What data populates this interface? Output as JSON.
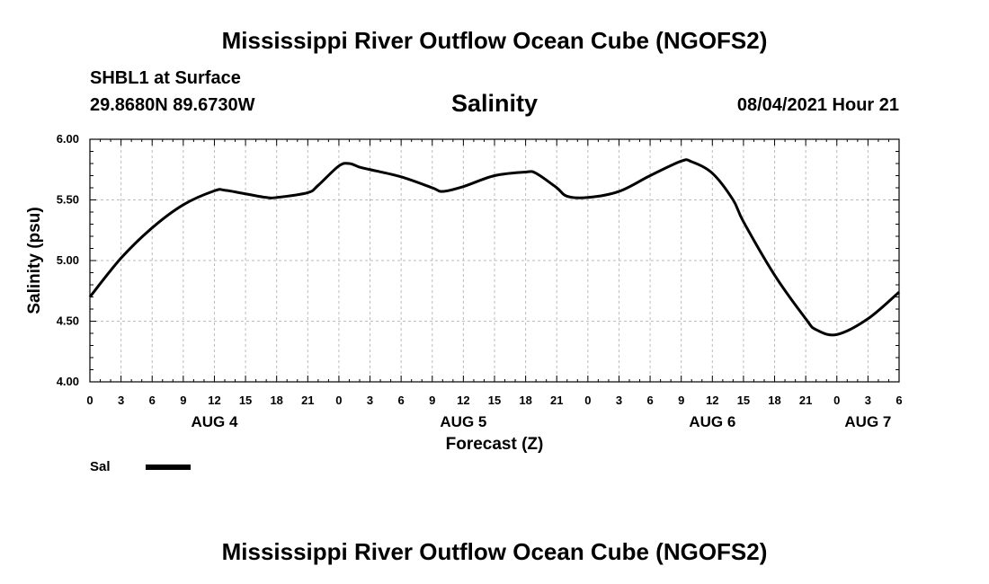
{
  "header": {
    "main_title": "Mississippi River Outflow Ocean Cube (NGOFS2)",
    "station": "SHBL1 at Surface",
    "coords": "29.8680N  89.6730W",
    "chart_title": "Salinity",
    "timestamp": "08/04/2021 Hour 21"
  },
  "footer": {
    "title": "Mississippi River Outflow Ocean Cube (NGOFS2)"
  },
  "chart_data": {
    "type": "line",
    "title": "Salinity",
    "xlabel": "Forecast (Z)",
    "ylabel": "Salinity (psu)",
    "xlim": [
      0,
      78
    ],
    "ylim": [
      4.0,
      6.0
    ],
    "grid": true,
    "y_ticks": [
      4.0,
      4.5,
      5.0,
      5.5,
      6.0
    ],
    "y_tick_labels": [
      "4.00",
      "4.50",
      "5.00",
      "5.50",
      "6.00"
    ],
    "x_ticks": [
      0,
      3,
      6,
      9,
      12,
      15,
      18,
      21,
      24,
      27,
      30,
      33,
      36,
      39,
      42,
      45,
      48,
      51,
      54,
      57,
      60,
      63,
      66,
      69,
      72,
      75,
      78
    ],
    "x_tick_labels": [
      "0",
      "3",
      "6",
      "9",
      "12",
      "15",
      "18",
      "21",
      "0",
      "3",
      "6",
      "9",
      "12",
      "15",
      "18",
      "21",
      "0",
      "3",
      "6",
      "9",
      "12",
      "15",
      "18",
      "21",
      "0",
      "3",
      "6"
    ],
    "day_labels": [
      {
        "hour": 12,
        "label": "AUG 4"
      },
      {
        "hour": 36,
        "label": "AUG 5"
      },
      {
        "hour": 60,
        "label": "AUG 6"
      },
      {
        "hour": 75,
        "label": "AUG 7"
      }
    ],
    "series": [
      {
        "name": "Sal",
        "color": "#000000",
        "x": [
          0,
          3,
          6,
          9,
          12,
          13,
          15,
          17,
          18,
          21,
          22,
          24,
          25,
          26,
          27,
          30,
          33,
          34,
          36,
          39,
          42,
          43,
          45,
          46,
          48,
          51,
          54,
          57,
          58,
          60,
          62,
          63,
          66,
          69,
          70,
          72,
          75,
          78
        ],
        "y": [
          4.7,
          5.02,
          5.27,
          5.46,
          5.575,
          5.58,
          5.55,
          5.52,
          5.52,
          5.56,
          5.62,
          5.78,
          5.8,
          5.77,
          5.75,
          5.69,
          5.6,
          5.57,
          5.61,
          5.7,
          5.73,
          5.72,
          5.6,
          5.53,
          5.52,
          5.57,
          5.7,
          5.82,
          5.815,
          5.72,
          5.5,
          5.32,
          4.88,
          4.52,
          4.43,
          4.39,
          4.52,
          4.74
        ]
      }
    ]
  },
  "legend": {
    "label": "Sal",
    "color": "#000000"
  }
}
